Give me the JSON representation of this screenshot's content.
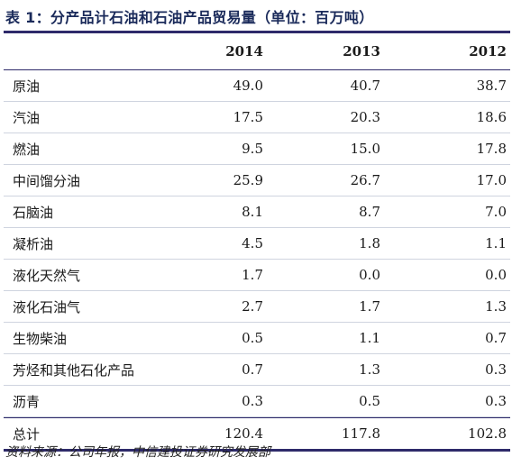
{
  "title": "表 1：分产品计石油和石油产品贸易量（单位：百万吨）",
  "columns": [
    "",
    "2014",
    "2013",
    "2012"
  ],
  "rows": [
    {
      "name": "原油",
      "v2014": "49.0",
      "v2013": "40.7",
      "v2012": "38.7"
    },
    {
      "name": "汽油",
      "v2014": "17.5",
      "v2013": "20.3",
      "v2012": "18.6"
    },
    {
      "name": "燃油",
      "v2014": "9.5",
      "v2013": "15.0",
      "v2012": "17.8"
    },
    {
      "name": "中间馏分油",
      "v2014": "25.9",
      "v2013": "26.7",
      "v2012": "17.0"
    },
    {
      "name": "石脑油",
      "v2014": "8.1",
      "v2013": "8.7",
      "v2012": "7.0"
    },
    {
      "name": "凝析油",
      "v2014": "4.5",
      "v2013": "1.8",
      "v2012": "1.1"
    },
    {
      "name": "液化天然气",
      "v2014": "1.7",
      "v2013": "0.0",
      "v2012": "0.0"
    },
    {
      "name": "液化石油气",
      "v2014": "2.7",
      "v2013": "1.7",
      "v2012": "1.3"
    },
    {
      "name": "生物柴油",
      "v2014": "0.5",
      "v2013": "1.1",
      "v2012": "0.7"
    },
    {
      "name": "芳烃和其他石化产品",
      "v2014": "0.7",
      "v2013": "1.3",
      "v2012": "0.3"
    },
    {
      "name": "沥青",
      "v2014": "0.3",
      "v2013": "0.5",
      "v2012": "0.3"
    }
  ],
  "total": {
    "name": "总计",
    "v2014": "120.4",
    "v2013": "117.8",
    "v2012": "102.8"
  },
  "source": "资料来源：公司年报，中信建投证券研究发展部"
}
